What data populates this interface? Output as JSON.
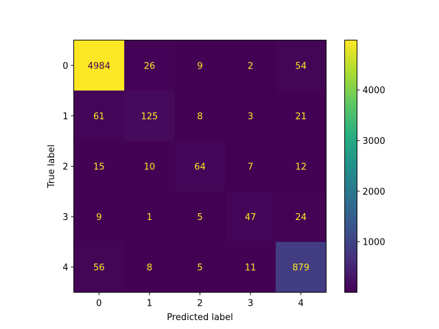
{
  "chart_data": {
    "type": "heatmap",
    "title": "",
    "xlabel": "Predicted label",
    "ylabel": "True label",
    "x_categories": [
      "0",
      "1",
      "2",
      "3",
      "4"
    ],
    "y_categories": [
      "0",
      "1",
      "2",
      "3",
      "4"
    ],
    "values": [
      [
        4984,
        26,
        9,
        2,
        54
      ],
      [
        61,
        125,
        8,
        3,
        21
      ],
      [
        15,
        10,
        64,
        7,
        12
      ],
      [
        9,
        1,
        5,
        47,
        24
      ],
      [
        56,
        8,
        5,
        11,
        879
      ]
    ],
    "colormap": "viridis",
    "color_range": [
      1,
      4984
    ],
    "colorbar_ticks": [
      1000,
      2000,
      3000,
      4000
    ],
    "text_color_dark_cells": "#fde725",
    "text_color_bright_cells": "#440154",
    "legend": "colorbar-right"
  }
}
